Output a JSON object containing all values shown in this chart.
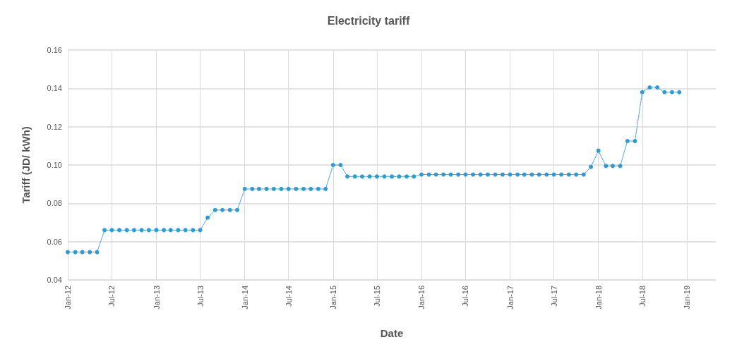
{
  "chart_data": {
    "type": "line",
    "title": "Electricity tariff",
    "xlabel": "Date",
    "ylabel": "Tariff (JD/ kWh)",
    "x": [
      "2012-01",
      "2012-02",
      "2012-03",
      "2012-04",
      "2012-05",
      "2012-06",
      "2012-07",
      "2012-08",
      "2012-09",
      "2012-10",
      "2012-11",
      "2012-12",
      "2013-01",
      "2013-02",
      "2013-03",
      "2013-04",
      "2013-05",
      "2013-06",
      "2013-07",
      "2013-08",
      "2013-09",
      "2013-10",
      "2013-11",
      "2013-12",
      "2014-01",
      "2014-02",
      "2014-03",
      "2014-04",
      "2014-05",
      "2014-06",
      "2014-07",
      "2014-08",
      "2014-09",
      "2014-10",
      "2014-11",
      "2014-12",
      "2015-01",
      "2015-02",
      "2015-03",
      "2015-04",
      "2015-05",
      "2015-06",
      "2015-07",
      "2015-08",
      "2015-09",
      "2015-10",
      "2015-11",
      "2015-12",
      "2016-01",
      "2016-02",
      "2016-03",
      "2016-04",
      "2016-05",
      "2016-06",
      "2016-07",
      "2016-08",
      "2016-09",
      "2016-10",
      "2016-11",
      "2016-12",
      "2017-01",
      "2017-02",
      "2017-03",
      "2017-04",
      "2017-05",
      "2017-06",
      "2017-07",
      "2017-08",
      "2017-09",
      "2017-10",
      "2017-11",
      "2017-12",
      "2018-01",
      "2018-02",
      "2018-03",
      "2018-04",
      "2018-05",
      "2018-06",
      "2018-07",
      "2018-08",
      "2018-09",
      "2018-10",
      "2018-11",
      "2018-12"
    ],
    "series": [
      {
        "color": "#2e9bd6",
        "values": [
          0.0545,
          0.0545,
          0.0545,
          0.0545,
          0.0545,
          0.066,
          0.066,
          0.066,
          0.066,
          0.066,
          0.066,
          0.066,
          0.066,
          0.066,
          0.066,
          0.066,
          0.066,
          0.066,
          0.066,
          0.0725,
          0.0765,
          0.0765,
          0.0765,
          0.0765,
          0.0875,
          0.0875,
          0.0875,
          0.0875,
          0.0875,
          0.0875,
          0.0875,
          0.0875,
          0.0875,
          0.0875,
          0.0875,
          0.0875,
          0.1,
          0.1,
          0.094,
          0.094,
          0.094,
          0.094,
          0.094,
          0.094,
          0.094,
          0.094,
          0.094,
          0.094,
          0.095,
          0.095,
          0.095,
          0.095,
          0.095,
          0.095,
          0.095,
          0.095,
          0.095,
          0.095,
          0.095,
          0.095,
          0.095,
          0.095,
          0.095,
          0.095,
          0.095,
          0.095,
          0.095,
          0.095,
          0.095,
          0.095,
          0.095,
          0.099,
          0.1075,
          0.0995,
          0.0995,
          0.0995,
          0.1125,
          0.1125,
          0.138,
          0.1405,
          0.1405,
          0.138,
          0.138,
          0.138
        ]
      }
    ],
    "xlim": [
      "2012-01",
      "2019-05"
    ],
    "xticks": [
      {
        "value": "2012-01",
        "label": "Jan-12"
      },
      {
        "value": "2012-07",
        "label": "Jul-12"
      },
      {
        "value": "2013-01",
        "label": "Jan-13"
      },
      {
        "value": "2013-07",
        "label": "Jul-13"
      },
      {
        "value": "2014-01",
        "label": "Jan-14"
      },
      {
        "value": "2014-07",
        "label": "Jul-14"
      },
      {
        "value": "2015-01",
        "label": "Jan-15"
      },
      {
        "value": "2015-07",
        "label": "Jul-15"
      },
      {
        "value": "2016-01",
        "label": "Jan-16"
      },
      {
        "value": "2016-07",
        "label": "Jul-16"
      },
      {
        "value": "2017-01",
        "label": "Jan-17"
      },
      {
        "value": "2017-07",
        "label": "Jul-17"
      },
      {
        "value": "2018-01",
        "label": "Jan-18"
      },
      {
        "value": "2018-07",
        "label": "Jul-18"
      },
      {
        "value": "2019-01",
        "label": "Jan-19"
      }
    ],
    "ylim": [
      0.04,
      0.16
    ],
    "yticks": [
      0.04,
      0.06,
      0.08,
      {
        "value": 0.1,
        "label": "0.10"
      },
      0.12,
      0.14,
      0.16
    ],
    "grid": true,
    "marker": "circle",
    "line_style": "dotted"
  }
}
